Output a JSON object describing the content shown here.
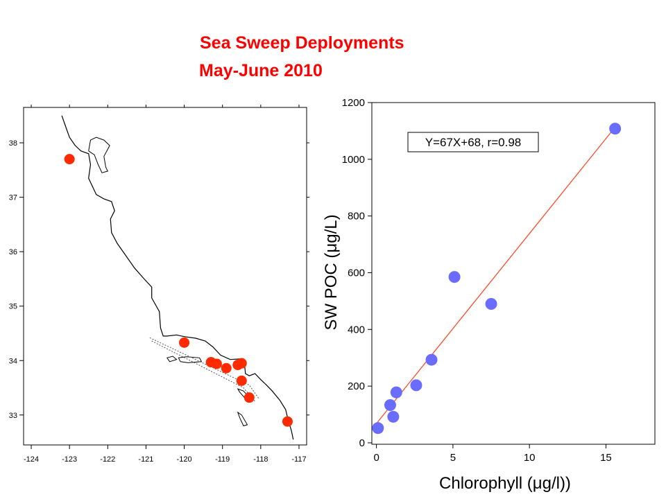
{
  "header": {
    "title_line1": "Sea Sweep Deployments",
    "title_line2": "May-June 2010"
  },
  "colors": {
    "title": "#ff0000",
    "map_points": "#ff2a00",
    "scatter_points": "#6a6cff",
    "fit_line": "#ff4a2a",
    "coastline": "#000000"
  },
  "chart_data": [
    {
      "type": "scatter",
      "title": "",
      "xlabel": "",
      "ylabel": "",
      "xlim": [
        -124.2,
        -116.8
      ],
      "ylim": [
        32.45,
        38.65
      ],
      "x_ticks": [
        -124,
        -123,
        -122,
        -121,
        -120,
        -119,
        -118,
        -117
      ],
      "y_ticks": [
        33,
        34,
        35,
        36,
        37,
        38
      ],
      "grid": false,
      "series": [
        {
          "marker": "red-dot",
          "points": [
            {
              "x": -123.0,
              "y": 37.7
            },
            {
              "x": -120.0,
              "y": 34.33
            },
            {
              "x": -119.3,
              "y": 33.97
            },
            {
              "x": -119.15,
              "y": 33.94
            },
            {
              "x": -118.9,
              "y": 33.86
            },
            {
              "x": -118.6,
              "y": 33.92
            },
            {
              "x": -118.5,
              "y": 33.95
            },
            {
              "x": -118.5,
              "y": 33.63
            },
            {
              "x": -118.3,
              "y": 33.32
            },
            {
              "x": -117.3,
              "y": 32.88
            }
          ]
        }
      ],
      "coastline_lonlat": [
        [
          -123.2,
          38.5
        ],
        [
          -123.1,
          38.3
        ],
        [
          -123.0,
          38.1
        ],
        [
          -122.85,
          37.95
        ],
        [
          -122.7,
          37.85
        ],
        [
          -122.5,
          37.8
        ],
        [
          -122.45,
          37.6
        ],
        [
          -122.5,
          37.35
        ],
        [
          -122.4,
          37.2
        ],
        [
          -122.3,
          37.05
        ],
        [
          -122.1,
          36.97
        ],
        [
          -121.9,
          36.92
        ],
        [
          -121.82,
          36.75
        ],
        [
          -121.93,
          36.6
        ],
        [
          -121.9,
          36.35
        ],
        [
          -121.75,
          36.15
        ],
        [
          -121.5,
          35.9
        ],
        [
          -121.3,
          35.7
        ],
        [
          -121.05,
          35.5
        ],
        [
          -120.85,
          35.35
        ],
        [
          -120.85,
          35.15
        ],
        [
          -120.65,
          34.9
        ],
        [
          -120.62,
          34.6
        ],
        [
          -120.55,
          34.45
        ],
        [
          -120.45,
          34.45
        ],
        [
          -120.2,
          34.47
        ],
        [
          -120.0,
          34.44
        ],
        [
          -119.7,
          34.41
        ],
        [
          -119.45,
          34.36
        ],
        [
          -119.25,
          34.25
        ],
        [
          -119.05,
          34.1
        ],
        [
          -118.8,
          34.02
        ],
        [
          -118.55,
          34.03
        ],
        [
          -118.42,
          33.9
        ],
        [
          -118.4,
          33.76
        ],
        [
          -118.3,
          33.72
        ],
        [
          -118.15,
          33.76
        ],
        [
          -118.0,
          33.65
        ],
        [
          -117.85,
          33.55
        ],
        [
          -117.7,
          33.44
        ],
        [
          -117.5,
          33.27
        ],
        [
          -117.35,
          33.1
        ],
        [
          -117.28,
          32.9
        ],
        [
          -117.2,
          32.72
        ],
        [
          -117.15,
          32.55
        ]
      ],
      "sf_bay_lonlat": [
        [
          -122.5,
          37.85
        ],
        [
          -122.45,
          38.05
        ],
        [
          -122.3,
          38.1
        ],
        [
          -122.1,
          38.05
        ],
        [
          -121.95,
          37.95
        ],
        [
          -122.1,
          37.75
        ],
        [
          -122.05,
          37.55
        ],
        [
          -122.0,
          37.48
        ],
        [
          -122.15,
          37.45
        ],
        [
          -122.25,
          37.6
        ],
        [
          -122.35,
          37.78
        ],
        [
          -122.5,
          37.85
        ]
      ],
      "islands_lonlat": [
        [
          [
            -120.45,
            34.05
          ],
          [
            -120.3,
            34.08
          ],
          [
            -120.2,
            34.02
          ],
          [
            -120.38,
            33.98
          ],
          [
            -120.45,
            34.05
          ]
        ],
        [
          [
            -120.15,
            34.05
          ],
          [
            -119.95,
            34.07
          ],
          [
            -119.6,
            34.05
          ],
          [
            -119.55,
            33.98
          ],
          [
            -119.9,
            33.96
          ],
          [
            -120.1,
            33.98
          ],
          [
            -120.15,
            34.05
          ]
        ],
        [
          [
            -118.6,
            33.48
          ],
          [
            -118.45,
            33.44
          ],
          [
            -118.3,
            33.32
          ],
          [
            -118.4,
            33.3
          ],
          [
            -118.55,
            33.42
          ],
          [
            -118.6,
            33.48
          ]
        ],
        [
          [
            -118.6,
            33.05
          ],
          [
            -118.5,
            33.0
          ],
          [
            -118.35,
            32.82
          ],
          [
            -118.45,
            32.8
          ],
          [
            -118.55,
            32.95
          ],
          [
            -118.6,
            33.05
          ]
        ]
      ],
      "tracks_lonlat": [
        [
          [
            -120.9,
            34.42
          ],
          [
            -118.3,
            33.55
          ],
          [
            -118.05,
            33.3
          ]
        ],
        [
          [
            -120.85,
            34.36
          ],
          [
            -118.45,
            33.5
          ],
          [
            -118.15,
            33.25
          ]
        ]
      ]
    },
    {
      "type": "scatter",
      "title": "",
      "xlabel": "Chlorophyll (μg/l))",
      "ylabel": "SW POC (μg/L)",
      "xlim": [
        -0.3,
        18.2
      ],
      "ylim": [
        -5,
        1200
      ],
      "x_ticks": [
        0,
        5,
        10,
        15
      ],
      "y_ticks": [
        0,
        200,
        400,
        600,
        800,
        1000,
        1200
      ],
      "grid": false,
      "annotation": "Y=67X+68, r=0.98",
      "fit_line": {
        "slope": 67,
        "intercept": 68,
        "x_range": [
          0,
          15.6
        ]
      },
      "series": [
        {
          "marker": "blue-dot",
          "points": [
            {
              "x": 0.1,
              "y": 52
            },
            {
              "x": 0.9,
              "y": 133
            },
            {
              "x": 1.1,
              "y": 92
            },
            {
              "x": 1.3,
              "y": 178
            },
            {
              "x": 2.6,
              "y": 203
            },
            {
              "x": 3.6,
              "y": 293
            },
            {
              "x": 5.1,
              "y": 585
            },
            {
              "x": 7.5,
              "y": 490
            },
            {
              "x": 15.6,
              "y": 1108
            }
          ]
        }
      ]
    }
  ]
}
